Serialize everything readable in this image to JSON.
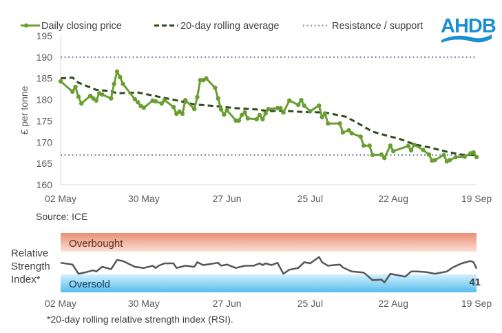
{
  "logo": {
    "text": "AHDB",
    "color": "#1b8fd2"
  },
  "colors": {
    "price": "#6a9e30",
    "average": "#2e4a1a",
    "levels": "#8497b0",
    "rsi": "#555555",
    "overbought_top": "#e98f74",
    "overbought_bottom": "#fbe0d4",
    "oversold_top": "#d3f0fd",
    "oversold_bottom": "#56bdee"
  },
  "chart_data": [
    {
      "type": "line",
      "ylabel": "£ per tonne",
      "ylim": [
        160,
        195
      ],
      "yticks": [
        "160",
        "165",
        "170",
        "175",
        "180",
        "185",
        "190",
        "195"
      ],
      "xticks": [
        {
          "date": "05-02",
          "label": "02 May"
        },
        {
          "date": "05-30",
          "label": "30 May"
        },
        {
          "date": "06-27",
          "label": "27 Jun"
        },
        {
          "date": "07-25",
          "label": "25 Jul"
        },
        {
          "date": "08-22",
          "label": "22 Aug"
        },
        {
          "date": "09-19",
          "label": "19 Sep"
        }
      ],
      "xlim": [
        "05-02",
        "09-19"
      ],
      "legend_placement": "top",
      "source": "Source: ICE",
      "series": [
        {
          "name": "Daily closing price",
          "style": "solid-with-markers",
          "points": [
            [
              "05-02",
              184.3
            ],
            [
              "05-06",
              181.9
            ],
            [
              "05-07",
              183.0
            ],
            [
              "05-08",
              180.7
            ],
            [
              "05-09",
              179.1
            ],
            [
              "05-12",
              180.9
            ],
            [
              "05-13",
              180.3
            ],
            [
              "05-14",
              179.8
            ],
            [
              "05-15",
              181.5
            ],
            [
              "05-16",
              181.2
            ],
            [
              "05-19",
              180.3
            ],
            [
              "05-20",
              183.7
            ],
            [
              "05-21",
              186.6
            ],
            [
              "05-22",
              185.3
            ],
            [
              "05-23",
              183.7
            ],
            [
              "05-27",
              180.1
            ],
            [
              "05-28",
              179.4
            ],
            [
              "05-29",
              178.5
            ],
            [
              "05-30",
              178.1
            ],
            [
              "06-02",
              179.8
            ],
            [
              "06-03",
              179.6
            ],
            [
              "06-05",
              179.1
            ],
            [
              "06-06",
              179.9
            ],
            [
              "06-09",
              178.3
            ],
            [
              "06-10",
              176.7
            ],
            [
              "06-11",
              177.2
            ],
            [
              "06-12",
              176.7
            ],
            [
              "06-13",
              179.9
            ],
            [
              "06-16",
              177.8
            ],
            [
              "06-17",
              180.6
            ],
            [
              "06-18",
              184.6
            ],
            [
              "06-19",
              184.6
            ],
            [
              "06-20",
              185.0
            ],
            [
              "06-23",
              182.8
            ],
            [
              "06-24",
              180.3
            ],
            [
              "06-25",
              177.7
            ],
            [
              "06-26",
              176.5
            ],
            [
              "06-27",
              177.5
            ],
            [
              "06-30",
              175.1
            ],
            [
              "07-01",
              175.1
            ],
            [
              "07-02",
              176.4
            ],
            [
              "07-03",
              177.0
            ],
            [
              "07-04",
              175.6
            ],
            [
              "07-07",
              175.4
            ],
            [
              "07-08",
              176.4
            ],
            [
              "07-09",
              175.4
            ],
            [
              "07-10",
              176.8
            ],
            [
              "07-11",
              177.8
            ],
            [
              "07-14",
              178.0
            ],
            [
              "07-15",
              178.0
            ],
            [
              "07-16",
              177.0
            ],
            [
              "07-18",
              179.8
            ],
            [
              "07-21",
              178.8
            ],
            [
              "07-22",
              179.9
            ],
            [
              "07-23",
              178.6
            ],
            [
              "07-25",
              177.3
            ],
            [
              "07-28",
              178.6
            ],
            [
              "07-29",
              175.9
            ],
            [
              "07-30",
              176.7
            ],
            [
              "07-31",
              174.4
            ],
            [
              "08-04",
              174.4
            ],
            [
              "08-05",
              172.3
            ],
            [
              "08-07",
              172.8
            ],
            [
              "08-08",
              172.1
            ],
            [
              "08-11",
              171.3
            ],
            [
              "08-12",
              169.2
            ],
            [
              "08-14",
              169.2
            ],
            [
              "08-15",
              167.0
            ],
            [
              "08-18",
              167.1
            ],
            [
              "08-19",
              166.3
            ],
            [
              "08-21",
              169.2
            ],
            [
              "08-22",
              167.9
            ],
            [
              "08-27",
              169.1
            ],
            [
              "08-28",
              168.1
            ],
            [
              "08-29",
              169.4
            ],
            [
              "09-01",
              168.2
            ],
            [
              "09-03",
              167.1
            ],
            [
              "09-04",
              165.7
            ],
            [
              "09-05",
              165.8
            ],
            [
              "09-08",
              167.0
            ],
            [
              "09-09",
              165.5
            ],
            [
              "09-10",
              165.8
            ],
            [
              "09-12",
              166.5
            ],
            [
              "09-15",
              166.6
            ],
            [
              "09-17",
              167.4
            ],
            [
              "09-18",
              167.6
            ],
            [
              "09-19",
              166.5
            ]
          ]
        },
        {
          "name": "20-day rolling average",
          "style": "dashed",
          "points": [
            [
              "05-02",
              185.0
            ],
            [
              "05-06",
              185.2
            ],
            [
              "05-08",
              184.0
            ],
            [
              "05-14",
              182.3
            ],
            [
              "05-19",
              182.0
            ],
            [
              "05-21",
              181.5
            ],
            [
              "05-28",
              181.7
            ],
            [
              "06-04",
              180.7
            ],
            [
              "06-11",
              179.7
            ],
            [
              "06-16",
              178.9
            ],
            [
              "06-23",
              178.5
            ],
            [
              "06-30",
              178.0
            ],
            [
              "07-07",
              177.7
            ],
            [
              "07-11",
              177.3
            ],
            [
              "07-16",
              177.4
            ],
            [
              "07-23",
              177.1
            ],
            [
              "07-30",
              177.0
            ],
            [
              "08-06",
              176.0
            ],
            [
              "08-10",
              174.5
            ],
            [
              "08-15",
              172.5
            ],
            [
              "08-20",
              171.5
            ],
            [
              "08-24",
              170.8
            ],
            [
              "08-29",
              169.5
            ],
            [
              "09-03",
              168.8
            ],
            [
              "09-10",
              167.6
            ],
            [
              "09-14",
              167.1
            ],
            [
              "09-19",
              167.0
            ]
          ]
        },
        {
          "name": "Resistance / support",
          "style": "dotted",
          "levels": [
            190,
            167
          ]
        }
      ]
    },
    {
      "type": "line",
      "ylabel": "Relative Strength Index*",
      "ylim": [
        0,
        100
      ],
      "bands": [
        {
          "label": "Overbought",
          "range": [
            70,
            100
          ]
        },
        {
          "label": "Oversold",
          "range": [
            0,
            30
          ]
        }
      ],
      "last_value_label": "41",
      "footnote": "*20-day rolling relative strength index (RSI).",
      "xticks": [
        {
          "date": "05-02",
          "label": "02 May"
        },
        {
          "date": "05-30",
          "label": "30 May"
        },
        {
          "date": "06-27",
          "label": "27 Jun"
        },
        {
          "date": "07-25",
          "label": "25 Jul"
        },
        {
          "date": "08-22",
          "label": "22 Aug"
        },
        {
          "date": "09-19",
          "label": "19 Sep"
        }
      ],
      "points": [
        [
          "05-02",
          51
        ],
        [
          "05-06",
          48
        ],
        [
          "05-08",
          32
        ],
        [
          "05-10",
          34
        ],
        [
          "05-13",
          38
        ],
        [
          "05-14",
          36
        ],
        [
          "05-16",
          44
        ],
        [
          "05-19",
          40
        ],
        [
          "05-21",
          56
        ],
        [
          "05-23",
          54
        ],
        [
          "05-27",
          44
        ],
        [
          "05-30",
          42
        ],
        [
          "06-02",
          46
        ],
        [
          "06-03",
          42
        ],
        [
          "06-04",
          46
        ],
        [
          "06-06",
          50
        ],
        [
          "06-09",
          50
        ],
        [
          "06-10",
          42
        ],
        [
          "06-13",
          46
        ],
        [
          "06-16",
          44
        ],
        [
          "06-17",
          52
        ],
        [
          "06-19",
          47
        ],
        [
          "06-24",
          51
        ],
        [
          "06-25",
          46
        ],
        [
          "06-27",
          48
        ],
        [
          "06-30",
          42
        ],
        [
          "07-03",
          46
        ],
        [
          "07-06",
          46
        ],
        [
          "07-08",
          50
        ],
        [
          "07-09",
          47
        ],
        [
          "07-10",
          50
        ],
        [
          "07-12",
          47
        ],
        [
          "07-14",
          51
        ],
        [
          "07-16",
          32
        ],
        [
          "07-18",
          39
        ],
        [
          "07-21",
          42
        ],
        [
          "07-23",
          52
        ],
        [
          "07-25",
          50
        ],
        [
          "07-28",
          61
        ],
        [
          "07-29",
          52
        ],
        [
          "07-31",
          46
        ],
        [
          "08-04",
          48
        ],
        [
          "08-05",
          43
        ],
        [
          "08-08",
          36
        ],
        [
          "08-12",
          34
        ],
        [
          "08-13",
          30
        ],
        [
          "08-15",
          21
        ],
        [
          "08-18",
          22
        ],
        [
          "08-19",
          17
        ],
        [
          "08-21",
          32
        ],
        [
          "08-26",
          27
        ],
        [
          "08-28",
          36
        ],
        [
          "08-30",
          36
        ],
        [
          "09-02",
          35
        ],
        [
          "09-05",
          32
        ],
        [
          "09-09",
          36
        ],
        [
          "09-11",
          43
        ],
        [
          "09-14",
          50
        ],
        [
          "09-17",
          54
        ],
        [
          "09-18",
          52
        ],
        [
          "09-19",
          41
        ]
      ]
    }
  ]
}
